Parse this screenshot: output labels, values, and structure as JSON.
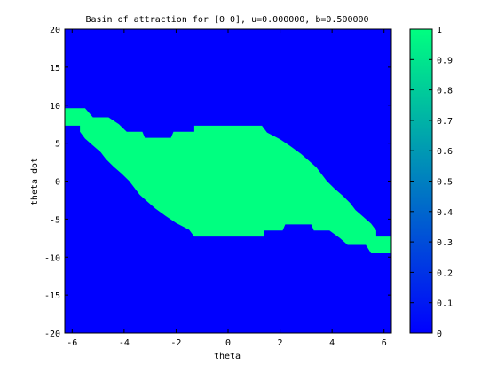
{
  "chart_data": {
    "type": "heatmap",
    "title": "Basin of attraction for [0  0], u=0.000000, b=0.500000",
    "xlabel": "theta",
    "ylabel": "theta dot",
    "xlim": [
      -6.2832,
      6.2832
    ],
    "ylim": [
      -20,
      20
    ],
    "x_ticks": [
      -6,
      -4,
      -2,
      0,
      2,
      4,
      6
    ],
    "y_ticks": [
      20,
      15,
      10,
      5,
      0,
      -5,
      -10,
      -15,
      -20
    ],
    "grid": false,
    "colorbar": {
      "range": [
        0,
        1
      ],
      "ticks": [
        1,
        0.9,
        0.8,
        0.7,
        0.6,
        0.5,
        0.4,
        0.3,
        0.2,
        0.1,
        0
      ],
      "tick_labels": [
        "1",
        "0.9",
        "0.8",
        "0.7",
        "0.6",
        "0.5",
        "0.4",
        "0.3",
        "0.2",
        "0.1",
        "0"
      ],
      "low_color": "#0000ff",
      "high_color": "#00ff80"
    },
    "background_value": 0,
    "region_value": 1,
    "basin_region": {
      "description_value": 1,
      "upper_boundary": [
        {
          "theta": -6.28,
          "theta_dot": 9.6
        },
        {
          "theta": -5.5,
          "theta_dot": 9.6
        },
        {
          "theta": -5.2,
          "theta_dot": 8.4
        },
        {
          "theta": -4.6,
          "theta_dot": 8.4
        },
        {
          "theta": -4.2,
          "theta_dot": 7.5
        },
        {
          "theta": -3.9,
          "theta_dot": 6.5
        },
        {
          "theta": -3.3,
          "theta_dot": 6.5
        },
        {
          "theta": -3.2,
          "theta_dot": 5.7
        },
        {
          "theta": -2.2,
          "theta_dot": 5.7
        },
        {
          "theta": -2.1,
          "theta_dot": 6.5
        },
        {
          "theta": -1.3,
          "theta_dot": 6.5
        },
        {
          "theta": -1.3,
          "theta_dot": 7.3
        },
        {
          "theta": 1.3,
          "theta_dot": 7.3
        },
        {
          "theta": 1.5,
          "theta_dot": 6.4
        },
        {
          "theta": 2.0,
          "theta_dot": 5.5
        },
        {
          "theta": 2.4,
          "theta_dot": 4.6
        },
        {
          "theta": 2.8,
          "theta_dot": 3.6
        },
        {
          "theta": 3.1,
          "theta_dot": 2.7
        },
        {
          "theta": 3.4,
          "theta_dot": 1.8
        },
        {
          "theta": 3.6,
          "theta_dot": 0.9
        },
        {
          "theta": 3.8,
          "theta_dot": 0.0
        },
        {
          "theta": 4.1,
          "theta_dot": -1.0
        },
        {
          "theta": 4.4,
          "theta_dot": -1.9
        },
        {
          "theta": 4.7,
          "theta_dot": -2.9
        },
        {
          "theta": 4.9,
          "theta_dot": -3.8
        },
        {
          "theta": 5.2,
          "theta_dot": -4.7
        },
        {
          "theta": 5.5,
          "theta_dot": -5.6
        },
        {
          "theta": 5.7,
          "theta_dot": -6.5
        },
        {
          "theta": 5.7,
          "theta_dot": -7.3
        },
        {
          "theta": 6.28,
          "theta_dot": -7.3
        }
      ],
      "lower_boundary": [
        {
          "theta": 6.28,
          "theta_dot": -9.5
        },
        {
          "theta": 5.5,
          "theta_dot": -9.5
        },
        {
          "theta": 5.3,
          "theta_dot": -8.4
        },
        {
          "theta": 4.6,
          "theta_dot": -8.4
        },
        {
          "theta": 4.3,
          "theta_dot": -7.5
        },
        {
          "theta": 3.9,
          "theta_dot": -6.5
        },
        {
          "theta": 3.3,
          "theta_dot": -6.5
        },
        {
          "theta": 3.2,
          "theta_dot": -5.7
        },
        {
          "theta": 2.2,
          "theta_dot": -5.7
        },
        {
          "theta": 2.1,
          "theta_dot": -6.5
        },
        {
          "theta": 1.4,
          "theta_dot": -6.5
        },
        {
          "theta": 1.4,
          "theta_dot": -7.3
        },
        {
          "theta": -1.3,
          "theta_dot": -7.3
        },
        {
          "theta": -1.5,
          "theta_dot": -6.4
        },
        {
          "theta": -2.0,
          "theta_dot": -5.5
        },
        {
          "theta": -2.4,
          "theta_dot": -4.6
        },
        {
          "theta": -2.8,
          "theta_dot": -3.6
        },
        {
          "theta": -3.1,
          "theta_dot": -2.7
        },
        {
          "theta": -3.4,
          "theta_dot": -1.8
        },
        {
          "theta": -3.6,
          "theta_dot": -0.9
        },
        {
          "theta": -3.8,
          "theta_dot": 0.0
        },
        {
          "theta": -4.1,
          "theta_dot": 1.0
        },
        {
          "theta": -4.4,
          "theta_dot": 1.9
        },
        {
          "theta": -4.7,
          "theta_dot": 2.9
        },
        {
          "theta": -4.9,
          "theta_dot": 3.8
        },
        {
          "theta": -5.2,
          "theta_dot": 4.7
        },
        {
          "theta": -5.5,
          "theta_dot": 5.6
        },
        {
          "theta": -5.7,
          "theta_dot": 6.5
        },
        {
          "theta": -5.7,
          "theta_dot": 7.3
        },
        {
          "theta": -6.28,
          "theta_dot": 7.3
        }
      ]
    }
  }
}
